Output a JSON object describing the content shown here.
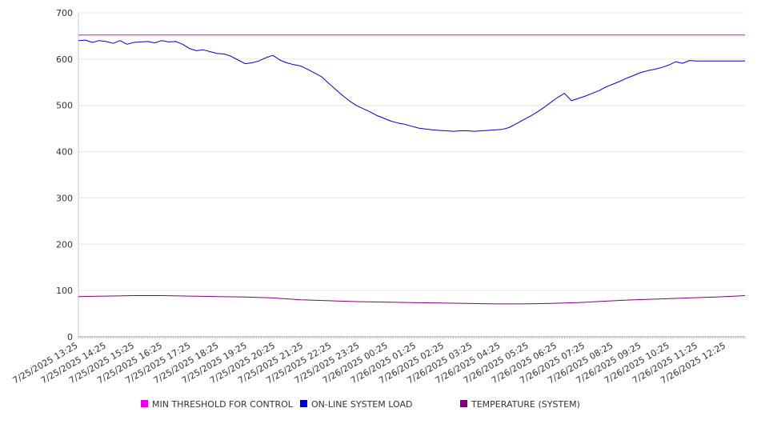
{
  "chart_data": {
    "type": "line",
    "title": "",
    "xlabel": "",
    "ylabel": "",
    "ylim": [
      0,
      700
    ],
    "y_ticks": [
      0,
      100,
      200,
      300,
      400,
      500,
      600,
      700
    ],
    "grid": true,
    "legend_position": "bottom",
    "x_tick_labels": [
      "7/25/2025 13:25",
      "7/25/2025 14:25",
      "7/25/2025 15:25",
      "7/25/2025 16:25",
      "7/25/2025 17:25",
      "7/25/2025 18:25",
      "7/25/2025 19:25",
      "7/25/2025 20:25",
      "7/25/2025 21:25",
      "7/25/2025 22:25",
      "7/25/2025 23:25",
      "7/26/2025 00:25",
      "7/26/2025 01:25",
      "7/26/2025 02:25",
      "7/26/2025 03:25",
      "7/26/2025 04:25",
      "7/26/2025 05:25",
      "7/26/2025 06:25",
      "7/26/2025 07:25",
      "7/26/2025 08:25",
      "7/26/2025 09:25",
      "7/26/2025 10:25",
      "7/26/2025 11:25",
      "7/26/2025 12:25"
    ],
    "x_range_hours": [
      0,
      24
    ],
    "series": [
      {
        "name": "MIN THRESHOLD FOR CONTROL",
        "color": "#e600e6",
        "x_hours": [
          0,
          24
        ],
        "values": [
          652,
          652
        ]
      },
      {
        "name": "ON-LINE SYSTEM LOAD",
        "color": "#0000cc",
        "x_hours": [
          0,
          0.25,
          0.5,
          0.75,
          1,
          1.25,
          1.5,
          1.75,
          2,
          2.25,
          2.5,
          2.75,
          3,
          3.25,
          3.5,
          3.75,
          4,
          4.25,
          4.5,
          4.75,
          5,
          5.25,
          5.5,
          5.75,
          6,
          6.25,
          6.5,
          6.75,
          7,
          7.25,
          7.5,
          7.75,
          8,
          8.25,
          8.5,
          8.75,
          9,
          9.25,
          9.5,
          9.75,
          10,
          10.25,
          10.5,
          10.75,
          11,
          11.25,
          11.5,
          11.75,
          12,
          12.25,
          12.5,
          12.75,
          13,
          13.25,
          13.5,
          13.75,
          14,
          14.25,
          14.5,
          14.75,
          15,
          15.25,
          15.5,
          15.75,
          16,
          16.25,
          16.5,
          16.75,
          17,
          17.25,
          17.5,
          17.75,
          18,
          18.25,
          18.5,
          18.75,
          19,
          19.25,
          19.5,
          19.75,
          20,
          20.25,
          20.5,
          20.75,
          21,
          21.25,
          21.5,
          21.75,
          22,
          22.25,
          22.5,
          22.75,
          23,
          23.25,
          23.5,
          23.75,
          24
        ],
        "values": [
          640,
          641,
          636,
          640,
          638,
          634,
          640,
          632,
          636,
          637,
          638,
          635,
          640,
          637,
          638,
          632,
          623,
          618,
          620,
          616,
          612,
          611,
          606,
          598,
          590,
          592,
          596,
          603,
          608,
          598,
          592,
          588,
          585,
          578,
          570,
          562,
          548,
          535,
          522,
          510,
          500,
          493,
          486,
          478,
          472,
          466,
          462,
          459,
          455,
          451,
          449,
          447,
          446,
          445,
          444,
          445,
          445,
          444,
          445,
          446,
          447,
          448,
          452,
          460,
          468,
          476,
          485,
          495,
          506,
          517,
          526,
          510,
          515,
          520,
          526,
          532,
          540,
          546,
          552,
          559,
          565,
          571,
          575,
          578,
          582,
          587,
          594,
          591,
          597,
          596,
          596,
          596,
          596,
          596,
          596,
          596,
          596
        ]
      },
      {
        "name": "TEMPERATURE (SYSTEM)",
        "color": "#800080",
        "x_hours": [
          0,
          1,
          2,
          3,
          4,
          5,
          6,
          7,
          8,
          9,
          10,
          11,
          12,
          13,
          14,
          15,
          16,
          17,
          18,
          19,
          20,
          21,
          22,
          23,
          24
        ],
        "values": [
          87,
          88,
          89,
          89,
          88,
          87,
          86,
          84,
          80,
          78,
          76,
          75,
          74,
          73,
          72,
          71,
          71,
          72,
          74,
          77,
          80,
          82,
          84,
          86,
          89
        ]
      }
    ]
  }
}
